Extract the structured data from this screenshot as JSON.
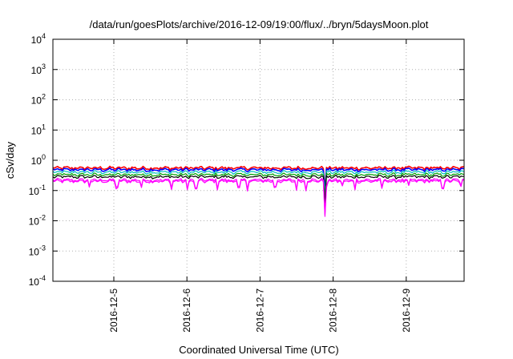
{
  "chart_data": {
    "type": "line",
    "title": "/data/run/goesPlots/archive/2016-12-09/19:00/flux/../bryn/5daysMoon.plot",
    "xlabel": "Coordinated Universal Time (UTC)",
    "ylabel": "cSv/day",
    "y_scale": "log",
    "ylim": [
      0.0001,
      10000
    ],
    "yticks": [
      {
        "base": "10",
        "exp": "4",
        "value": 10000
      },
      {
        "base": "10",
        "exp": "3",
        "value": 1000
      },
      {
        "base": "10",
        "exp": "2",
        "value": 100
      },
      {
        "base": "10",
        "exp": "1",
        "value": 10
      },
      {
        "base": "10",
        "exp": "0",
        "value": 1
      },
      {
        "base": "10",
        "exp": "-1",
        "value": 0.1
      },
      {
        "base": "10",
        "exp": "-2",
        "value": 0.01
      },
      {
        "base": "10",
        "exp": "-3",
        "value": 0.001
      },
      {
        "base": "10",
        "exp": "-4",
        "value": 0.0001
      }
    ],
    "xlim": [
      "2016-12-04T04:00",
      "2016-12-09T19:00"
    ],
    "xticks": [
      "2016-12-5",
      "2016-12-6",
      "2016-12-7",
      "2016-12-8",
      "2016-12-9"
    ],
    "xtick_dates": [
      "2016-12-05",
      "2016-12-06",
      "2016-12-07",
      "2016-12-08",
      "2016-12-09"
    ],
    "grid": true,
    "legend": "none",
    "series": [
      {
        "color": "#ff0000",
        "level": 0.55
      },
      {
        "color": "#0000ff",
        "level": 0.48
      },
      {
        "color": "#00c0c0",
        "level": 0.4
      },
      {
        "color": "#00a000",
        "level": 0.33
      },
      {
        "color": "#000000",
        "level": 0.28
      },
      {
        "color": "#ff00ff",
        "level": 0.22
      },
      {
        "color": "#ff00ff",
        "level": 0.2
      }
    ],
    "dips": [
      {
        "date": "2016-12-04T16:00",
        "value": 0.14
      },
      {
        "date": "2016-12-05T01:00",
        "value": 0.13
      },
      {
        "date": "2016-12-05T09:00",
        "value": 0.14
      },
      {
        "date": "2016-12-05T19:00",
        "value": 0.12
      },
      {
        "date": "2016-12-06T00:00",
        "value": 0.11
      },
      {
        "date": "2016-12-06T03:00",
        "value": 0.12
      },
      {
        "date": "2016-12-06T10:00",
        "value": 0.13
      },
      {
        "date": "2016-12-06T17:00",
        "value": 0.13
      },
      {
        "date": "2016-12-06T20:00",
        "value": 0.12
      },
      {
        "date": "2016-12-07T05:00",
        "value": 0.14
      },
      {
        "date": "2016-12-07T12:00",
        "value": 0.12
      },
      {
        "date": "2016-12-07T15:00",
        "value": 0.12
      },
      {
        "date": "2016-12-07T22:00",
        "value": 0.13
      },
      {
        "date": "2016-12-08T03:00",
        "value": 0.14
      },
      {
        "date": "2016-12-07T21:20",
        "value": 0.017
      },
      {
        "date": "2016-12-08T07:00",
        "value": 0.12
      },
      {
        "date": "2016-12-08T16:00",
        "value": 0.13
      },
      {
        "date": "2016-12-09T01:00",
        "value": 0.14
      },
      {
        "date": "2016-12-09T12:00",
        "value": 0.13
      },
      {
        "date": "2016-12-09T18:00",
        "value": 0.14
      }
    ]
  }
}
